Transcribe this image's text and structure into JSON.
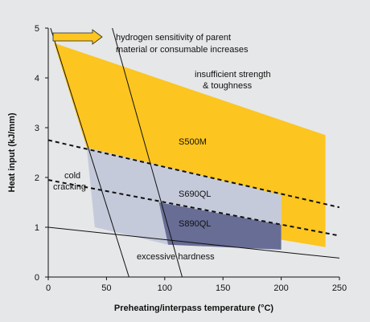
{
  "chart_data": {
    "type": "area",
    "xlabel": "Preheating/interpass temperature (°C)",
    "ylabel": "Heat input (kJ/mm)",
    "xlim": [
      0,
      250
    ],
    "ylim": [
      0,
      5
    ],
    "xticks": [
      0,
      50,
      100,
      150,
      200,
      250
    ],
    "yticks": [
      0,
      1,
      2,
      3,
      4,
      5
    ],
    "background": "#e6e7e8",
    "regions": [
      {
        "name": "S500M",
        "color": "#fcc520",
        "polygon": [
          [
            5,
            4.7
          ],
          [
            238,
            2.85
          ],
          [
            238,
            0.6
          ],
          [
            200,
            0.75
          ],
          [
            200,
            1.65
          ],
          [
            33,
            2.6
          ]
        ]
      },
      {
        "name": "S690QL",
        "color": "#c5cadb",
        "polygon": [
          [
            33,
            2.6
          ],
          [
            200,
            1.65
          ],
          [
            200,
            0.55
          ],
          [
            103,
            0.65
          ],
          [
            40,
            1.0
          ]
        ]
      },
      {
        "name": "S890QL",
        "color": "#686d95",
        "polygon": [
          [
            95,
            1.5
          ],
          [
            200,
            1.05
          ],
          [
            200,
            0.55
          ],
          [
            103,
            0.65
          ]
        ]
      }
    ],
    "lines": [
      {
        "id": "upper-dashed",
        "style": "dashed",
        "points": [
          [
            0,
            2.75
          ],
          [
            250,
            1.4
          ]
        ]
      },
      {
        "id": "lower-dashed",
        "style": "dashed",
        "points": [
          [
            0,
            1.95
          ],
          [
            250,
            0.83
          ]
        ]
      },
      {
        "id": "left-boundary",
        "style": "solid",
        "points": [
          [
            2,
            5
          ],
          [
            72,
            -0.2
          ]
        ]
      },
      {
        "id": "hardness-line",
        "style": "solid",
        "points": [
          [
            0,
            1.0
          ],
          [
            250,
            0.38
          ]
        ]
      },
      {
        "id": "hydrogen-line",
        "style": "solid",
        "points": [
          [
            55,
            5
          ],
          [
            115,
            0
          ]
        ]
      }
    ],
    "annotations": {
      "hydrogen": [
        "hydrogen sensitivity of parent",
        "material or consumable increases"
      ],
      "strength": [
        "insufficient strength",
        "& toughness"
      ],
      "cold": [
        "cold",
        "cracking"
      ],
      "hardness": "excessive hardness",
      "s500m": "S500M",
      "s690ql": "S690QL",
      "s890ql": "S890QL"
    },
    "arrow_color": "#fcc520"
  }
}
